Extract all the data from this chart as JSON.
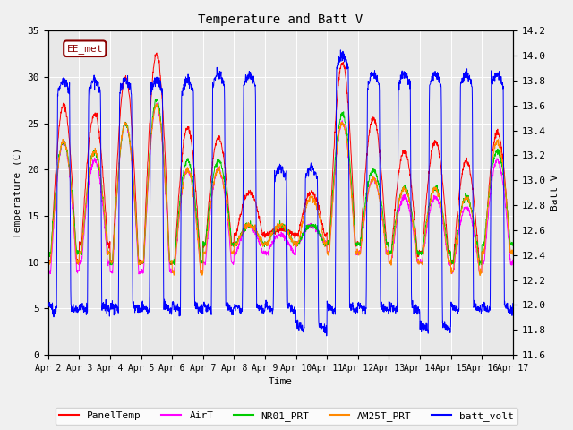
{
  "title": "Temperature and Batt V",
  "xlabel": "Time",
  "ylabel_left": "Temperature (C)",
  "ylabel_right": "Batt V",
  "site_label": "EE_met",
  "xlim": [
    0,
    15
  ],
  "ylim_left": [
    0,
    35
  ],
  "ylim_right": [
    11.6,
    14.2
  ],
  "x_ticks": [
    0,
    1,
    2,
    3,
    4,
    5,
    6,
    7,
    8,
    9,
    10,
    11,
    12,
    13,
    14,
    15
  ],
  "x_tick_labels": [
    "Apr 2",
    "Apr 3",
    "Apr 4",
    "Apr 5",
    "Apr 6",
    "Apr 7",
    "Apr 8",
    "Apr 9",
    "Apr 10",
    "Apr 11",
    "Apr 12",
    "Apr 13",
    "Apr 14",
    "Apr 15",
    "Apr 16",
    "Apr 17"
  ],
  "y_ticks_left": [
    0,
    5,
    10,
    15,
    20,
    25,
    30,
    35
  ],
  "y_ticks_right": [
    11.6,
    11.8,
    12.0,
    12.2,
    12.4,
    12.6,
    12.8,
    13.0,
    13.2,
    13.4,
    13.6,
    13.8,
    14.0,
    14.2
  ],
  "colors": {
    "PanelTemp": "#ff0000",
    "AirT": "#ff00ff",
    "NR01_PRT": "#00cc00",
    "AM25T_PRT": "#ff8800",
    "batt_volt": "#0000ff"
  },
  "legend_labels": [
    "PanelTemp",
    "AirT",
    "NR01_PRT",
    "AM25T_PRT",
    "batt_volt"
  ],
  "bg_color": "#f0f0f0",
  "plot_bg_color": "#e8e8e8",
  "grid_color": "#ffffff",
  "font_family": "monospace",
  "daily_peaks_panel": [
    27,
    26,
    30,
    32.5,
    24.5,
    23.5,
    17.5,
    13.5,
    17.5,
    31.5,
    25.5,
    22,
    23,
    21,
    24
  ],
  "daily_peaks_air": [
    23,
    21,
    25,
    27,
    20,
    20,
    14,
    13,
    14,
    25,
    19,
    17,
    17,
    16,
    21
  ],
  "daily_peaks_nr01": [
    23,
    22,
    25,
    27.5,
    21,
    21,
    14,
    14,
    14,
    26,
    20,
    18,
    18,
    17,
    22
  ],
  "daily_peaks_am25": [
    23,
    22,
    25,
    27,
    20,
    20,
    14,
    14,
    17,
    25,
    19,
    18,
    18,
    17,
    23
  ],
  "daily_mins_panel": [
    10,
    12,
    10,
    10,
    10,
    12,
    13,
    13,
    13,
    12,
    12,
    11,
    11,
    10,
    11
  ],
  "daily_mins_air": [
    9,
    10,
    9,
    9,
    9,
    10,
    11,
    11,
    12,
    11,
    11,
    10,
    10,
    9,
    10
  ],
  "daily_mins_nr01": [
    11,
    11,
    10,
    10,
    10,
    12,
    12,
    12,
    12,
    12,
    12,
    11,
    11,
    10,
    12
  ],
  "daily_mins_am25": [
    10,
    11,
    10,
    10,
    9,
    11,
    12,
    12,
    12,
    11,
    11,
    10,
    10,
    9,
    11
  ],
  "batt_night_base": [
    12.0,
    12.0,
    12.0,
    12.0,
    12.0,
    12.0,
    12.0,
    12.0,
    11.85,
    12.0,
    12.0,
    12.0,
    11.85,
    12.0,
    12.0
  ],
  "batt_day_peak": [
    13.8,
    13.8,
    13.8,
    13.8,
    13.8,
    13.85,
    13.85,
    13.1,
    13.1,
    14.0,
    13.85,
    13.85,
    13.85,
    13.85,
    13.85
  ]
}
